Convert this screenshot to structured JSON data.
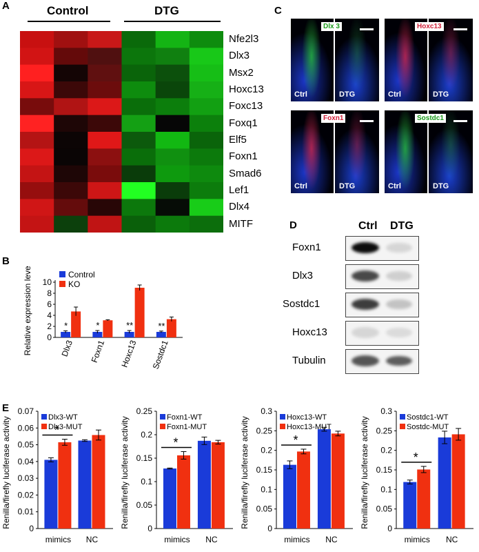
{
  "panelA": {
    "label": "A",
    "group_labels": [
      "Control",
      "DTG"
    ],
    "genes": [
      "Nfe2l3",
      "Dlx3",
      "Msx2",
      "Hoxc13",
      "Foxc13",
      "Foxq1",
      "Elf5",
      "Foxn1",
      "Smad6",
      "Lef1",
      "Dlx4",
      "MITF"
    ],
    "colors": [
      [
        "#c81010",
        "#a01010",
        "#c81818",
        "#0a6a0a",
        "#14b414",
        "#0e8c0e"
      ],
      [
        "#d21414",
        "#640a0a",
        "#501010",
        "#0c760c",
        "#108010",
        "#18c818"
      ],
      [
        "#ff2020",
        "#140505",
        "#601010",
        "#0a640a",
        "#0c500c",
        "#16be16"
      ],
      [
        "#d81616",
        "#3c0808",
        "#6c0c0c",
        "#0e8c0e",
        "#0a460a",
        "#16b016"
      ],
      [
        "#780c0c",
        "#b01414",
        "#dc1818",
        "#0a6e0a",
        "#0c7e0c",
        "#12a012"
      ],
      [
        "#ff2222",
        "#1e0606",
        "#3c0808",
        "#14a014",
        "#060606",
        "#0c800c"
      ],
      [
        "#b41414",
        "#0c0505",
        "#e01818",
        "#0c5a0c",
        "#12b812",
        "#0a640a"
      ],
      [
        "#dc1818",
        "#0a0505",
        "#8c1010",
        "#0a6e0a",
        "#109010",
        "#0c7a0c"
      ],
      [
        "#c41414",
        "#1e0606",
        "#7a0c0c",
        "#0a3c0a",
        "#0e9a0e",
        "#0e8a0e"
      ],
      [
        "#960e0e",
        "#3c0808",
        "#ce1616",
        "#22ff22",
        "#0a3c0a",
        "#0c7c0c"
      ],
      [
        "#d01616",
        "#640c0c",
        "#280606",
        "#0c780c",
        "#060c06",
        "#18cc18"
      ],
      [
        "#c41414",
        "#0c400c",
        "#c01414",
        "#0a600a",
        "#0c7a0c",
        "#0c6e0c"
      ]
    ]
  },
  "panelB": {
    "label": "B",
    "chart_data": {
      "type": "bar",
      "ylabel": "Relative expression level",
      "ylim": [
        0,
        10
      ],
      "yticks": [
        "0",
        "2",
        "4",
        "6",
        "8",
        "10"
      ],
      "categories": [
        "Dlx3",
        "Foxn1",
        "Hoxc13",
        "Sostdc1"
      ],
      "series": [
        {
          "name": "Control",
          "color": "#1a3bd9",
          "values": [
            1.0,
            1.0,
            1.0,
            1.0
          ],
          "errors": [
            0.2,
            0.25,
            0.25,
            0.15
          ]
        },
        {
          "name": "KO",
          "color": "#f03010",
          "values": [
            4.7,
            3.1,
            9.0,
            3.3
          ],
          "errors": [
            0.8,
            0.1,
            0.5,
            0.4
          ]
        }
      ],
      "significance": [
        "*",
        "*",
        "**",
        "**"
      ],
      "legend_position": "top-left"
    }
  },
  "panelC": {
    "label": "C",
    "images": [
      {
        "marker": "Dlx 3",
        "marker_color": "#1a9a1a",
        "left": "Ctrl",
        "right": "DTG"
      },
      {
        "marker": "Hoxc13",
        "marker_color": "#d0203a",
        "left": "Ctrl",
        "right": "DTG"
      },
      {
        "marker": "Foxn1",
        "marker_color": "#d0203a",
        "left": "Ctrl",
        "right": "DTG"
      },
      {
        "marker": "Sostdc1",
        "marker_color": "#1a9a1a",
        "left": "Ctrl",
        "right": "DTG"
      }
    ]
  },
  "panelD": {
    "label": "D",
    "columns": [
      "Ctrl",
      "DTG"
    ],
    "rows": [
      "Foxn1",
      "Dlx3",
      "Sostdc1",
      "Hoxc13",
      "Tubulin"
    ],
    "intensity_ctrl": [
      0.95,
      0.7,
      0.75,
      0.12,
      0.65
    ],
    "intensity_dtg": [
      0.12,
      0.15,
      0.2,
      0.1,
      0.62
    ]
  },
  "panelE": {
    "label": "E",
    "chart_data": [
      {
        "type": "bar",
        "ylabel": "Renilla/firefly luciferase activity",
        "ylim": [
          0,
          0.07
        ],
        "yticks": [
          "0",
          "0.01",
          "0.02",
          "0.03",
          "0.04",
          "0.05",
          "0.06",
          "0.07"
        ],
        "categories": [
          "mimics",
          "NC"
        ],
        "series": [
          {
            "name": "Dlx3-WT",
            "color": "#1a3bd9",
            "values": [
              0.041,
              0.0525
            ],
            "errors": [
              0.0012,
              0.0005
            ]
          },
          {
            "name": "Dlx3-MUT",
            "color": "#f03010",
            "values": [
              0.0515,
              0.0558
            ],
            "errors": [
              0.0018,
              0.003
            ]
          }
        ],
        "significance": "*"
      },
      {
        "type": "bar",
        "ylabel": "Renilla/firefly luciferase activity",
        "ylim": [
          0,
          0.25
        ],
        "yticks": [
          "0",
          "0.05",
          "0.1",
          "0.15",
          "0.2",
          "0.25"
        ],
        "categories": [
          "mimics",
          "NC"
        ],
        "series": [
          {
            "name": "Foxn1-WT",
            "color": "#1a3bd9",
            "values": [
              0.128,
              0.187
            ],
            "errors": [
              0.001,
              0.008
            ]
          },
          {
            "name": "Foxn1-MUT",
            "color": "#f03010",
            "values": [
              0.156,
              0.184
            ],
            "errors": [
              0.008,
              0.004
            ]
          }
        ],
        "significance": "*"
      },
      {
        "type": "bar",
        "ylabel": "Renilla/firefly luciferase activity",
        "ylim": [
          0,
          0.3
        ],
        "yticks": [
          "0",
          "0.05",
          "0.1",
          "0.15",
          "0.2",
          "0.25",
          "0.3"
        ],
        "categories": [
          "mimics",
          "NC"
        ],
        "series": [
          {
            "name": "Hoxc13-WT",
            "color": "#1a3bd9",
            "values": [
              0.163,
              0.254
            ],
            "errors": [
              0.01,
              0.005
            ]
          },
          {
            "name": "Hoxc13-MUT",
            "color": "#f03010",
            "values": [
              0.197,
              0.243
            ],
            "errors": [
              0.006,
              0.006
            ]
          }
        ],
        "significance": "*"
      },
      {
        "type": "bar",
        "ylabel": "Renilla/firefly luciferase activity",
        "ylim": [
          0,
          0.3
        ],
        "yticks": [
          "0",
          "0.05",
          "0.1",
          "0.15",
          "0.2",
          "0.25",
          "0.3"
        ],
        "categories": [
          "mimics",
          "NC"
        ],
        "series": [
          {
            "name": "Sostdc1-WT",
            "color": "#1a3bd9",
            "values": [
              0.119,
              0.233
            ],
            "errors": [
              0.005,
              0.016
            ]
          },
          {
            "name": "Sostdc-MUT",
            "color": "#f03010",
            "values": [
              0.151,
              0.241
            ],
            "errors": [
              0.008,
              0.015
            ]
          }
        ],
        "significance": "*"
      }
    ]
  }
}
